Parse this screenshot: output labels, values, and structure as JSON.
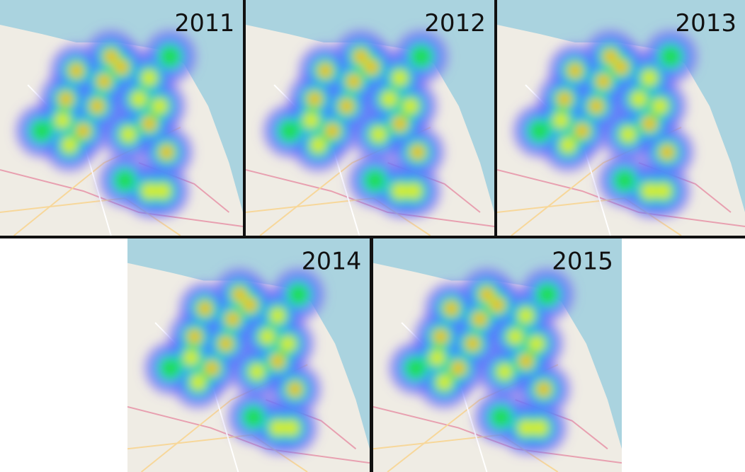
{
  "panels": [
    {
      "label": "2011"
    },
    {
      "label": "2012"
    },
    {
      "label": "2013"
    },
    {
      "label": "2014"
    },
    {
      "label": "2015"
    }
  ]
}
